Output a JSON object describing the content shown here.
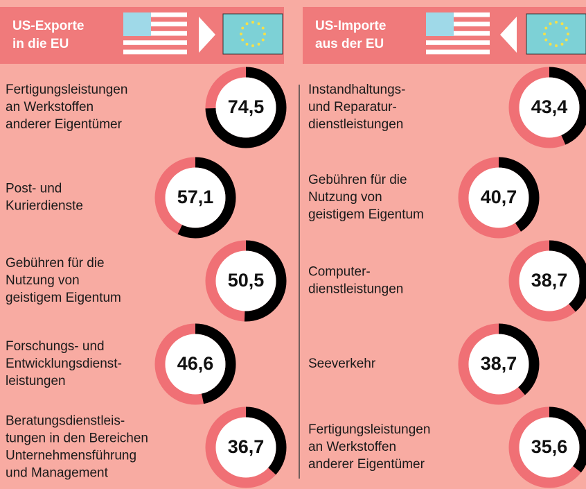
{
  "chart_data": [
    {
      "type": "donut",
      "title": [
        "US-Exporte",
        "in die EU"
      ],
      "categories": [
        [
          "Fertigungsleistungen",
          "an Werkstoffen",
          "anderer Eigentümer"
        ],
        [
          "Post- und",
          "Kurierdienste"
        ],
        [
          "Gebühren für die",
          "Nutzung von",
          "geistigem Eigentum"
        ],
        [
          "Forschungs- und",
          "Entwicklungsdienst-",
          "leistungen"
        ],
        [
          "Beratungsdienstleis-",
          "tungen in den Bereichen",
          "Unternehmensführung",
          "und Management"
        ]
      ],
      "values": [
        74.5,
        57.1,
        50.5,
        46.6,
        36.7
      ],
      "value_labels": [
        "74,5",
        "57,1",
        "50,5",
        "46,6",
        "36,7"
      ],
      "color": "#000000"
    },
    {
      "type": "donut",
      "title": [
        "US-Importe",
        "aus der EU"
      ],
      "categories": [
        [
          "Instandhaltungs-",
          "und Reparatur-",
          "dienstleistungen"
        ],
        [
          "Gebühren für die",
          "Nutzung von",
          "geistigem Eigentum"
        ],
        [
          "Computer-",
          "dienstleistungen"
        ],
        [
          "Seeverkehr"
        ],
        [
          "Fertigungsleistungen",
          "an Werkstoffen",
          "anderer Eigentümer"
        ]
      ],
      "values": [
        43.4,
        40.7,
        38.7,
        38.7,
        35.6
      ],
      "value_labels": [
        "43,4",
        "40,7",
        "38,7",
        "38,7",
        "35,6"
      ],
      "color": "#000000"
    }
  ]
}
